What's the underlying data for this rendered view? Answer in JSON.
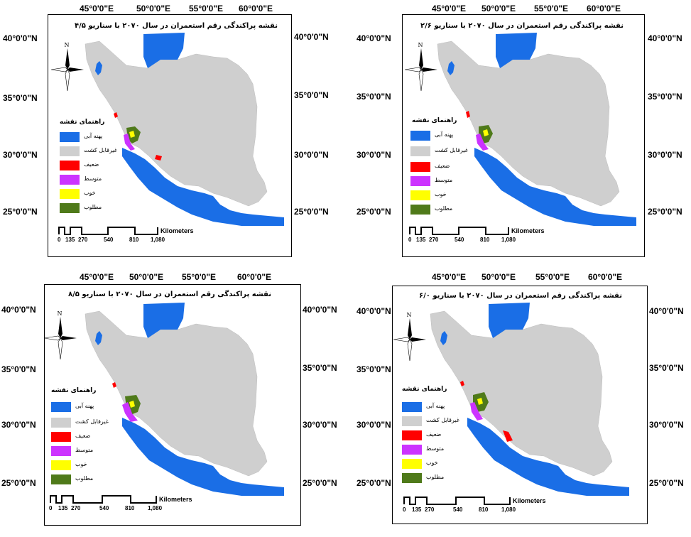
{
  "lon_labels": [
    "45°0'0\"E",
    "50°0'0\"E",
    "55°0'0\"E",
    "60°0'0\"E"
  ],
  "lat_labels": [
    "40°0'0\"N",
    "35°0'0\"N",
    "30°0'0\"N",
    "25°0'0\"N"
  ],
  "legend_title": "راهنمای نقشه",
  "legend": [
    {
      "label": "پهنه آبی",
      "color": "#1a6ee6"
    },
    {
      "label": "غیرقابل کشت",
      "color": "#cfcfcf"
    },
    {
      "label": "ضعیف",
      "color": "#ff0000"
    },
    {
      "label": "متوسط",
      "color": "#cc33ff"
    },
    {
      "label": "خوب",
      "color": "#ffff00"
    },
    {
      "label": "مطلوب",
      "color": "#4f7a1a"
    }
  ],
  "scale": {
    "unit": "Kilometers",
    "ticks": [
      "0",
      "135",
      "270",
      "540",
      "810",
      "1,080"
    ]
  },
  "north_label": "N",
  "colors": {
    "water": "#1a6ee6",
    "land": "#cfcfcf",
    "weak": "#ff0000",
    "medium": "#cc33ff",
    "good": "#ffff00",
    "excellent": "#4f7a1a"
  },
  "maps": [
    {
      "title": "نقشه پراکندگی رقم استعمران در سال ۲۰۷۰ با سناریو ۴/۵"
    },
    {
      "title": "نقشه پراکندگی رقم استعمران در سال ۲۰۷۰ با سناریو ۲/۶"
    },
    {
      "title": "نقشه پراکندگی رقم استعمران در سال ۲۰۷۰ با سناریو ۸/۵"
    },
    {
      "title": "نقشه پراکندگی رقم استعمران در سال ۲۰۷۰ با سناریو ۶/۰"
    }
  ]
}
